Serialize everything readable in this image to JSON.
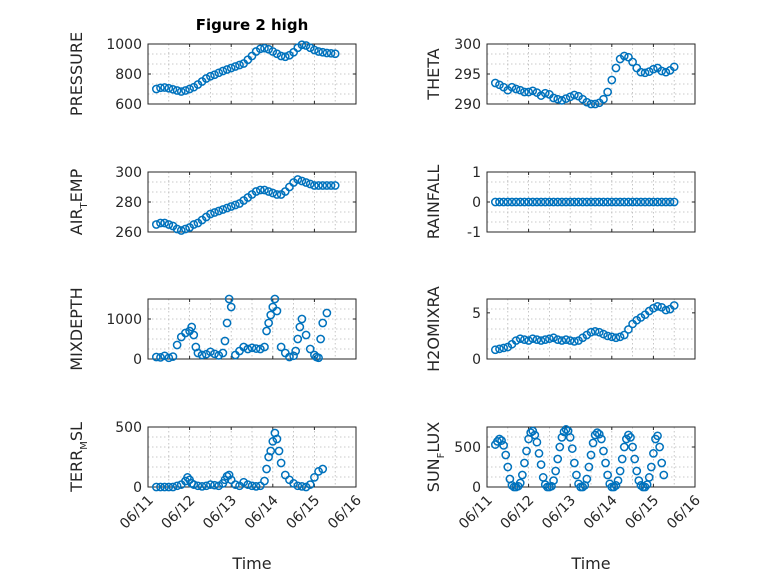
{
  "chart_data": [
    {
      "type": "scatter",
      "title": "Figure 2 high",
      "ylabel": "PRESSURE",
      "xlabel": "",
      "ylim": [
        600,
        1000
      ],
      "yticks": [
        "600",
        "800",
        "1000"
      ],
      "ytick_values": [
        600,
        800,
        1000
      ],
      "xlim": [
        0,
        5
      ],
      "xticks": [
        "06/11",
        "06/12",
        "06/13",
        "06/14",
        "06/15",
        "06/16"
      ],
      "show_xtick_labels": false,
      "grid": true,
      "color": "#0072BD",
      "x": [
        0.2,
        0.3,
        0.4,
        0.5,
        0.6,
        0.7,
        0.8,
        0.9,
        1.0,
        1.1,
        1.2,
        1.3,
        1.4,
        1.5,
        1.6,
        1.7,
        1.8,
        1.9,
        2.0,
        2.1,
        2.2,
        2.3,
        2.4,
        2.5,
        2.6,
        2.7,
        2.8,
        2.9,
        3.0,
        3.1,
        3.2,
        3.3,
        3.4,
        3.5,
        3.6,
        3.7,
        3.8,
        3.9,
        4.0,
        4.1,
        4.2,
        4.3,
        4.4,
        4.5
      ],
      "y": [
        700,
        708,
        710,
        705,
        698,
        690,
        683,
        690,
        700,
        712,
        730,
        750,
        770,
        785,
        795,
        808,
        820,
        830,
        840,
        850,
        860,
        870,
        895,
        920,
        950,
        968,
        972,
        965,
        950,
        935,
        920,
        915,
        925,
        945,
        975,
        995,
        990,
        975,
        960,
        950,
        945,
        940,
        938,
        935
      ]
    },
    {
      "type": "scatter",
      "title": "",
      "ylabel": "THETA",
      "xlabel": "",
      "ylim": [
        290,
        300
      ],
      "yticks": [
        "290",
        "295",
        "300"
      ],
      "ytick_values": [
        290,
        295,
        300
      ],
      "xlim": [
        0,
        5
      ],
      "xticks": [
        "06/11",
        "06/12",
        "06/13",
        "06/14",
        "06/15",
        "06/16"
      ],
      "show_xtick_labels": false,
      "grid": true,
      "color": "#0072BD",
      "x": [
        0.2,
        0.3,
        0.4,
        0.5,
        0.6,
        0.7,
        0.8,
        0.9,
        1.0,
        1.1,
        1.2,
        1.3,
        1.4,
        1.5,
        1.6,
        1.7,
        1.8,
        1.9,
        2.0,
        2.1,
        2.2,
        2.3,
        2.4,
        2.5,
        2.6,
        2.7,
        2.8,
        2.9,
        3.0,
        3.1,
        3.2,
        3.3,
        3.4,
        3.5,
        3.6,
        3.7,
        3.8,
        3.9,
        4.0,
        4.1,
        4.2,
        4.3,
        4.4,
        4.5
      ],
      "y": [
        293.5,
        293.2,
        292.8,
        292.3,
        292.8,
        292.5,
        292.3,
        292.0,
        292.0,
        292.2,
        291.9,
        291.4,
        291.8,
        291.6,
        291.0,
        290.8,
        290.6,
        290.9,
        291.2,
        291.5,
        291.3,
        290.8,
        290.3,
        290.0,
        290.0,
        290.2,
        290.8,
        292.0,
        294.0,
        296.0,
        297.5,
        298.0,
        297.8,
        297.0,
        296.0,
        295.3,
        295.2,
        295.4,
        295.8,
        296.0,
        295.5,
        295.3,
        295.6,
        296.2
      ]
    },
    {
      "type": "scatter",
      "title": "",
      "ylabel": "AIR",
      "ylabel_sub": "T",
      "ylabel_rest": "EMP",
      "xlabel": "",
      "ylim": [
        260,
        300
      ],
      "yticks": [
        "260",
        "280",
        "300"
      ],
      "ytick_values": [
        260,
        280,
        300
      ],
      "xlim": [
        0,
        5
      ],
      "xticks": [
        "06/11",
        "06/12",
        "06/13",
        "06/14",
        "06/15",
        "06/16"
      ],
      "show_xtick_labels": false,
      "grid": true,
      "color": "#0072BD",
      "x": [
        0.2,
        0.3,
        0.4,
        0.5,
        0.6,
        0.7,
        0.8,
        0.9,
        1.0,
        1.1,
        1.2,
        1.3,
        1.4,
        1.5,
        1.6,
        1.7,
        1.8,
        1.9,
        2.0,
        2.1,
        2.2,
        2.3,
        2.4,
        2.5,
        2.6,
        2.7,
        2.8,
        2.9,
        3.0,
        3.1,
        3.2,
        3.3,
        3.4,
        3.5,
        3.6,
        3.7,
        3.8,
        3.9,
        4.0,
        4.1,
        4.2,
        4.3,
        4.4,
        4.5
      ],
      "y": [
        265,
        266,
        266,
        265,
        264,
        262,
        261,
        262,
        263,
        265,
        266,
        268,
        270,
        272,
        273,
        274,
        275,
        276,
        277,
        278,
        279,
        281,
        283,
        285,
        287,
        288,
        288,
        287,
        286,
        285,
        285,
        287,
        290,
        293,
        295,
        294,
        293,
        292,
        291,
        291,
        291,
        291,
        291,
        291
      ]
    },
    {
      "type": "scatter",
      "title": "",
      "ylabel": "RAINFALL",
      "xlabel": "",
      "ylim": [
        -1,
        1
      ],
      "yticks": [
        "-1",
        "0",
        "1"
      ],
      "ytick_values": [
        -1,
        0,
        1
      ],
      "xlim": [
        0,
        5
      ],
      "xticks": [
        "06/11",
        "06/12",
        "06/13",
        "06/14",
        "06/15",
        "06/16"
      ],
      "show_xtick_labels": false,
      "grid": true,
      "color": "#0072BD",
      "x": [
        0.2,
        0.3,
        0.4,
        0.5,
        0.6,
        0.7,
        0.8,
        0.9,
        1.0,
        1.1,
        1.2,
        1.3,
        1.4,
        1.5,
        1.6,
        1.7,
        1.8,
        1.9,
        2.0,
        2.1,
        2.2,
        2.3,
        2.4,
        2.5,
        2.6,
        2.7,
        2.8,
        2.9,
        3.0,
        3.1,
        3.2,
        3.3,
        3.4,
        3.5,
        3.6,
        3.7,
        3.8,
        3.9,
        4.0,
        4.1,
        4.2,
        4.3,
        4.4,
        4.5
      ],
      "y": [
        0,
        0,
        0,
        0,
        0,
        0,
        0,
        0,
        0,
        0,
        0,
        0,
        0,
        0,
        0,
        0,
        0,
        0,
        0,
        0,
        0,
        0,
        0,
        0,
        0,
        0,
        0,
        0,
        0,
        0,
        0,
        0,
        0,
        0,
        0,
        0,
        0,
        0,
        0,
        0,
        0,
        0,
        0,
        0
      ]
    },
    {
      "type": "scatter",
      "title": "",
      "ylabel": "MIXDEPTH",
      "xlabel": "",
      "ylim": [
        0,
        1500
      ],
      "yticks": [
        "0",
        "1000"
      ],
      "ytick_values": [
        0,
        1000
      ],
      "xlim": [
        0,
        5
      ],
      "xticks": [
        "06/11",
        "06/12",
        "06/13",
        "06/14",
        "06/15",
        "06/16"
      ],
      "show_xtick_labels": false,
      "grid": true,
      "color": "#0072BD",
      "x": [
        0.2,
        0.3,
        0.4,
        0.5,
        0.6,
        0.7,
        0.8,
        0.9,
        1.0,
        1.05,
        1.1,
        1.15,
        1.2,
        1.3,
        1.4,
        1.5,
        1.6,
        1.7,
        1.8,
        1.85,
        1.9,
        1.95,
        2.0,
        2.1,
        2.2,
        2.3,
        2.4,
        2.5,
        2.6,
        2.7,
        2.8,
        2.85,
        2.9,
        2.95,
        3.0,
        3.05,
        3.1,
        3.2,
        3.3,
        3.4,
        3.5,
        3.55,
        3.6,
        3.65,
        3.7,
        3.8,
        3.9,
        4.0,
        4.05,
        4.1,
        4.15,
        4.2,
        4.3
      ],
      "y": [
        50,
        40,
        80,
        30,
        60,
        350,
        550,
        650,
        700,
        800,
        600,
        300,
        150,
        100,
        120,
        180,
        130,
        90,
        150,
        450,
        900,
        1500,
        1300,
        100,
        200,
        300,
        250,
        280,
        260,
        250,
        300,
        700,
        900,
        1100,
        1300,
        1500,
        1200,
        300,
        150,
        50,
        80,
        200,
        500,
        800,
        1000,
        600,
        250,
        100,
        50,
        30,
        500,
        900,
        1150
      ]
    },
    {
      "type": "scatter",
      "title": "",
      "ylabel": "H2OMIXRA",
      "xlabel": "",
      "ylim": [
        0,
        6.5
      ],
      "yticks": [
        "0",
        "5"
      ],
      "ytick_values": [
        0,
        5
      ],
      "xlim": [
        0,
        5
      ],
      "xticks": [
        "06/11",
        "06/12",
        "06/13",
        "06/14",
        "06/15",
        "06/16"
      ],
      "show_xtick_labels": false,
      "grid": true,
      "color": "#0072BD",
      "x": [
        0.2,
        0.3,
        0.4,
        0.5,
        0.6,
        0.7,
        0.8,
        0.9,
        1.0,
        1.1,
        1.2,
        1.3,
        1.4,
        1.5,
        1.6,
        1.7,
        1.8,
        1.9,
        2.0,
        2.1,
        2.2,
        2.3,
        2.4,
        2.5,
        2.6,
        2.7,
        2.8,
        2.9,
        3.0,
        3.1,
        3.2,
        3.3,
        3.4,
        3.5,
        3.6,
        3.7,
        3.8,
        3.9,
        4.0,
        4.1,
        4.2,
        4.3,
        4.4,
        4.5
      ],
      "y": [
        1.0,
        1.1,
        1.2,
        1.3,
        1.6,
        2.0,
        2.2,
        2.1,
        2.0,
        2.2,
        2.1,
        2.0,
        2.1,
        2.2,
        2.3,
        2.1,
        2.0,
        2.1,
        2.0,
        1.9,
        2.0,
        2.3,
        2.6,
        2.9,
        3.0,
        2.9,
        2.7,
        2.5,
        2.4,
        2.3,
        2.4,
        2.6,
        3.2,
        3.8,
        4.2,
        4.5,
        4.8,
        5.2,
        5.5,
        5.7,
        5.6,
        5.3,
        5.4,
        5.8
      ]
    },
    {
      "type": "scatter",
      "title": "",
      "ylabel": "TERR",
      "ylabel_sub": "M",
      "ylabel_rest": "SL",
      "xlabel": "Time",
      "ylim": [
        0,
        500
      ],
      "yticks": [
        "0",
        "500"
      ],
      "ytick_values": [
        0,
        500
      ],
      "xlim": [
        0,
        5
      ],
      "xticks": [
        "06/11",
        "06/12",
        "06/13",
        "06/14",
        "06/15",
        "06/16"
      ],
      "show_xtick_labels": true,
      "grid": true,
      "color": "#0072BD",
      "x": [
        0.2,
        0.3,
        0.4,
        0.5,
        0.6,
        0.7,
        0.8,
        0.9,
        0.95,
        1.0,
        1.05,
        1.1,
        1.2,
        1.3,
        1.4,
        1.5,
        1.6,
        1.7,
        1.8,
        1.85,
        1.9,
        1.95,
        2.0,
        2.1,
        2.2,
        2.3,
        2.4,
        2.5,
        2.6,
        2.7,
        2.8,
        2.85,
        2.9,
        2.95,
        3.0,
        3.05,
        3.1,
        3.15,
        3.2,
        3.3,
        3.4,
        3.5,
        3.6,
        3.7,
        3.8,
        3.9,
        4.0,
        4.1,
        4.2
      ],
      "y": [
        0,
        0,
        0,
        0,
        0,
        10,
        20,
        50,
        80,
        60,
        30,
        20,
        10,
        5,
        10,
        20,
        15,
        10,
        30,
        60,
        90,
        100,
        60,
        20,
        10,
        40,
        20,
        10,
        5,
        10,
        50,
        150,
        250,
        300,
        380,
        450,
        400,
        300,
        200,
        100,
        60,
        30,
        10,
        5,
        0,
        20,
        80,
        130,
        150
      ]
    },
    {
      "type": "scatter",
      "title": "",
      "ylabel": "SUN",
      "ylabel_sub": "F",
      "ylabel_rest": "LUX",
      "xlabel": "Time",
      "ylim": [
        0,
        750
      ],
      "yticks": [
        "0",
        "500"
      ],
      "ytick_values": [
        0,
        500
      ],
      "xlim": [
        0,
        5
      ],
      "xticks": [
        "06/11",
        "06/12",
        "06/13",
        "06/14",
        "06/15",
        "06/16"
      ],
      "show_xtick_labels": true,
      "grid": true,
      "color": "#0072BD",
      "x": [
        0.2,
        0.25,
        0.3,
        0.35,
        0.4,
        0.45,
        0.5,
        0.55,
        0.6,
        0.65,
        0.7,
        0.75,
        0.8,
        0.85,
        0.9,
        0.95,
        1.0,
        1.05,
        1.1,
        1.15,
        1.2,
        1.25,
        1.3,
        1.35,
        1.4,
        1.45,
        1.5,
        1.55,
        1.6,
        1.65,
        1.7,
        1.75,
        1.8,
        1.85,
        1.9,
        1.95,
        2.0,
        2.05,
        2.1,
        2.15,
        2.2,
        2.25,
        2.3,
        2.35,
        2.4,
        2.45,
        2.5,
        2.55,
        2.6,
        2.65,
        2.7,
        2.75,
        2.8,
        2.85,
        2.9,
        2.95,
        3.0,
        3.05,
        3.1,
        3.15,
        3.2,
        3.25,
        3.3,
        3.35,
        3.4,
        3.45,
        3.5,
        3.55,
        3.6,
        3.65,
        3.7,
        3.75,
        3.8,
        3.85,
        3.9,
        3.95,
        4.0,
        4.05,
        4.1,
        4.15,
        4.2,
        4.25
      ],
      "y": [
        530,
        570,
        600,
        580,
        520,
        400,
        250,
        100,
        20,
        0,
        0,
        10,
        50,
        150,
        300,
        450,
        600,
        680,
        700,
        650,
        560,
        420,
        280,
        120,
        30,
        0,
        0,
        10,
        80,
        200,
        350,
        500,
        620,
        690,
        720,
        700,
        620,
        480,
        300,
        150,
        40,
        0,
        0,
        20,
        100,
        250,
        400,
        550,
        650,
        680,
        660,
        600,
        450,
        300,
        150,
        40,
        0,
        0,
        20,
        80,
        200,
        350,
        500,
        600,
        650,
        620,
        500,
        350,
        200,
        80,
        20,
        0,
        0,
        30,
        120,
        250,
        420,
        600,
        640,
        500,
        300,
        150
      ]
    }
  ]
}
